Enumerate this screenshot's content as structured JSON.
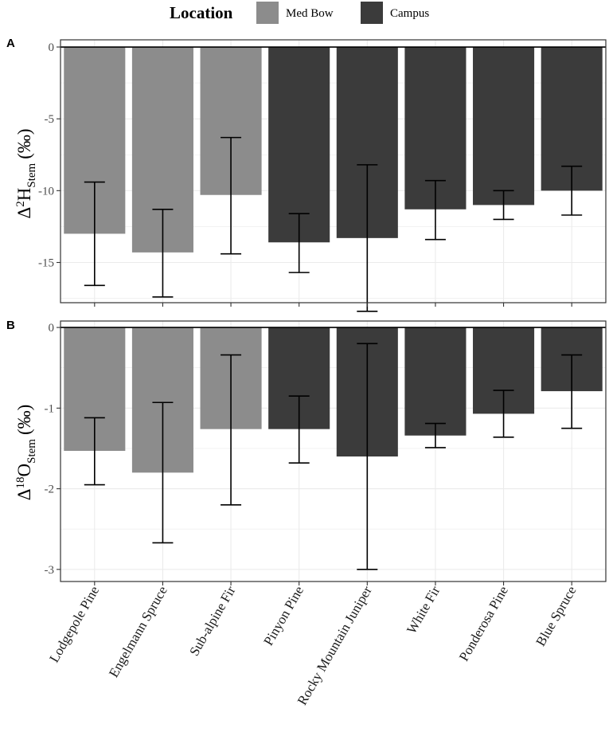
{
  "legend": {
    "title": "Location",
    "items": [
      {
        "label": "Med Bow",
        "color": "#8c8c8c"
      },
      {
        "label": "Campus",
        "color": "#3b3b3b"
      }
    ]
  },
  "chart_data": [
    {
      "panel": "A",
      "type": "bar",
      "ylabel": {
        "prefix": "Δ",
        "sup": "2",
        "main": "H",
        "sub": "Stem",
        "unit": "(‰)"
      },
      "ylim": [
        -17.8,
        0.5
      ],
      "yticks": [
        0,
        -5,
        -10,
        -15
      ],
      "grid": true,
      "categories": [
        "Lodgepole Pine",
        "Engelmann Spruce",
        "Sub-alpine Fir",
        "Pinyon Pine",
        "Rocky Mountain Juniper",
        "White Fir",
        "Ponderosa Pine",
        "Blue Spruce"
      ],
      "location": [
        "Med Bow",
        "Med Bow",
        "Med Bow",
        "Campus",
        "Campus",
        "Campus",
        "Campus",
        "Campus"
      ],
      "values": [
        -13.0,
        -14.3,
        -10.3,
        -13.6,
        -13.3,
        -11.3,
        -11.0,
        -10.0
      ],
      "error_low": [
        -16.6,
        -17.4,
        -14.4,
        -15.7,
        -18.4,
        -13.4,
        -12.0,
        -11.7
      ],
      "error_high": [
        -9.4,
        -11.3,
        -6.3,
        -11.6,
        -8.2,
        -9.3,
        -10.0,
        -8.3
      ]
    },
    {
      "panel": "B",
      "type": "bar",
      "ylabel": {
        "prefix": "Δ",
        "sup": "18",
        "main": "O",
        "sub": "Stem",
        "unit": "(‰)"
      },
      "ylim": [
        -3.15,
        0.08
      ],
      "yticks": [
        0,
        -1,
        -2,
        -3
      ],
      "grid": true,
      "categories": [
        "Lodgepole Pine",
        "Engelmann Spruce",
        "Sub-alpine Fir",
        "Pinyon Pine",
        "Rocky Mountain Juniper",
        "White Fir",
        "Ponderosa Pine",
        "Blue Spruce"
      ],
      "location": [
        "Med Bow",
        "Med Bow",
        "Med Bow",
        "Campus",
        "Campus",
        "Campus",
        "Campus",
        "Campus"
      ],
      "values": [
        -1.53,
        -1.8,
        -1.26,
        -1.26,
        -1.6,
        -1.34,
        -1.07,
        -0.79
      ],
      "error_low": [
        -1.95,
        -2.67,
        -2.2,
        -1.68,
        -3.0,
        -1.49,
        -1.36,
        -1.25
      ],
      "error_high": [
        -1.12,
        -0.93,
        -0.34,
        -0.85,
        -0.2,
        -1.19,
        -0.78,
        -0.34
      ]
    }
  ]
}
